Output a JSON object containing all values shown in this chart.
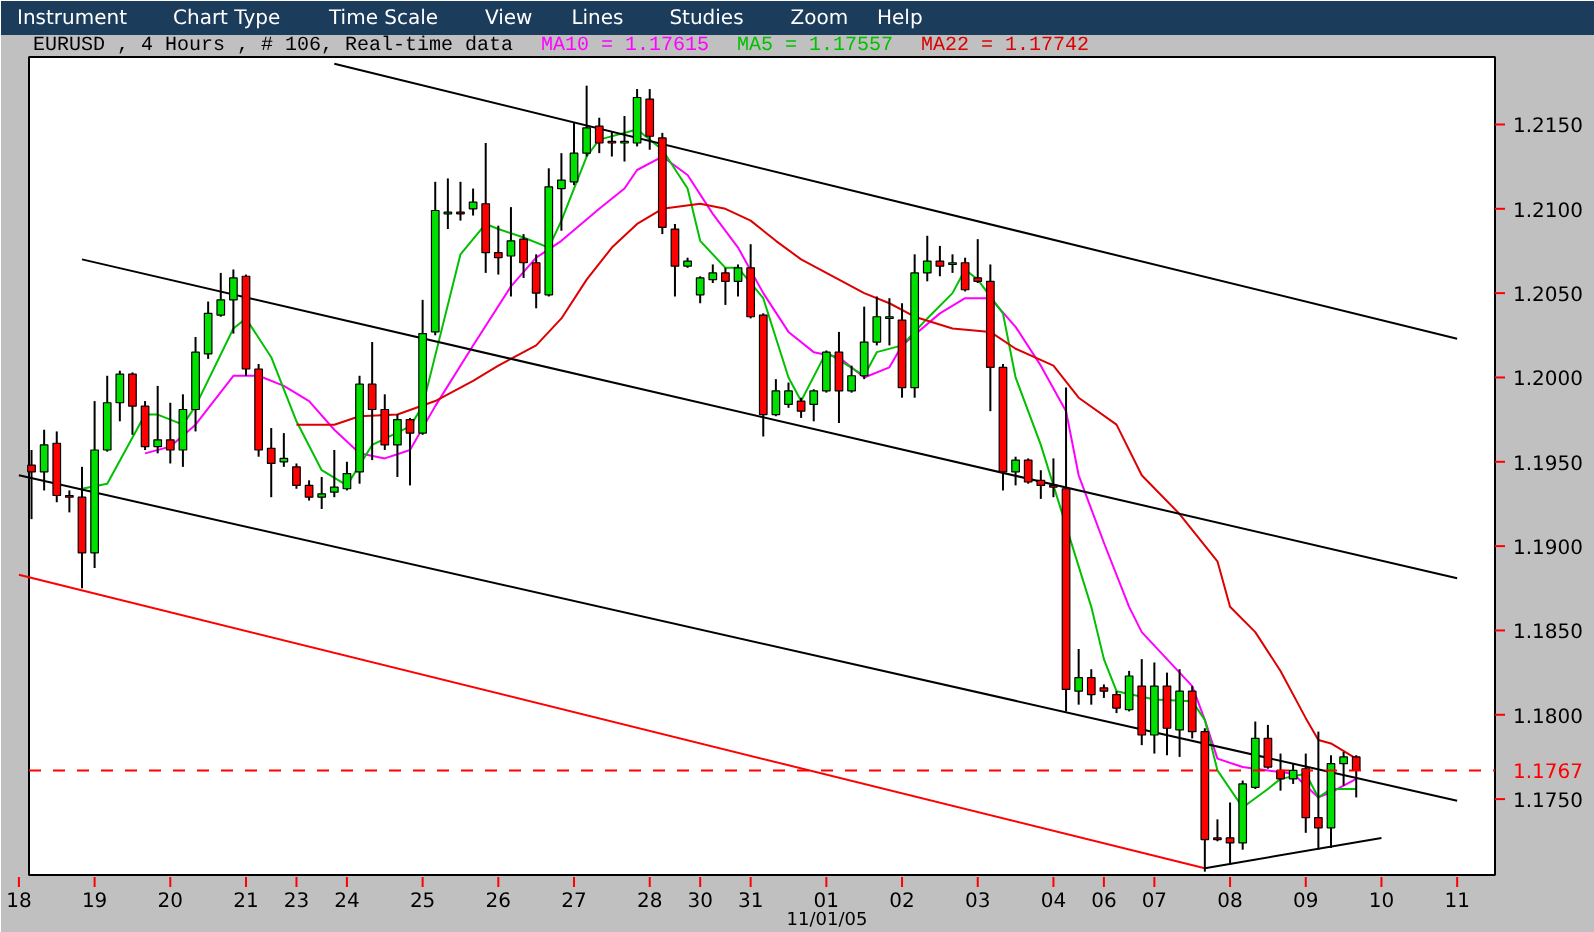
{
  "chart_data": {
    "type": "candlestick",
    "title": "EURUSD , 4 Hours , # 106, Real-time data",
    "annotations": [
      "Instrument",
      "Chart Type",
      "Time Scale",
      "View",
      "Lines",
      "Studies",
      "Zoom",
      "Help",
      "11/01/05"
    ],
    "categories": [
      "18",
      null,
      null,
      null,
      null,
      null,
      "19",
      null,
      null,
      null,
      null,
      null,
      "20",
      null,
      null,
      null,
      null,
      null,
      "21",
      null,
      null,
      null,
      "23",
      null,
      null,
      null,
      "24",
      null,
      null,
      null,
      null,
      null,
      "25",
      null,
      null,
      null,
      null,
      null,
      "26",
      null,
      null,
      null,
      null,
      null,
      "27",
      null,
      null,
      null,
      null,
      null,
      "28",
      null,
      null,
      null,
      "30",
      null,
      null,
      null,
      "31",
      null,
      null,
      null,
      null,
      null,
      "01",
      null,
      null,
      null,
      null,
      null,
      "02",
      null,
      null,
      null,
      null,
      null,
      "03",
      null,
      null,
      null,
      null,
      null,
      "04",
      null,
      null,
      null,
      "06",
      null,
      null,
      null,
      "07",
      null,
      null,
      null,
      null,
      null,
      "08",
      null,
      null,
      null,
      null,
      null,
      "09",
      null,
      null,
      null,
      null,
      null,
      "10",
      null,
      null,
      null,
      null,
      null,
      "11"
    ],
    "ylim": [
      1.1705,
      1.219
    ],
    "yticks": [
      {
        "value": 1.175,
        "label": "1.1750"
      },
      {
        "value": 1.18,
        "label": "1.1800"
      },
      {
        "value": 1.185,
        "label": "1.1850"
      },
      {
        "value": 1.19,
        "label": "1.1900"
      },
      {
        "value": 1.195,
        "label": "1.1950"
      },
      {
        "value": 1.2,
        "label": "1.2000"
      },
      {
        "value": 1.205,
        "label": "1.2050"
      },
      {
        "value": 1.21,
        "label": "1.2100"
      },
      {
        "value": 1.215,
        "label": "1.2150"
      }
    ],
    "ref_lines": [
      {
        "axis": "y",
        "value": 1.1767,
        "label": "1.1767",
        "color": "#ff0000",
        "line_style": "dashed"
      }
    ],
    "ohlc": [
      null,
      [
        1.1948,
        1.1957,
        1.1916,
        1.1944
      ],
      [
        1.1944,
        1.1969,
        1.1933,
        1.196
      ],
      [
        1.1961,
        1.1968,
        1.1926,
        1.193
      ],
      [
        1.193,
        1.1933,
        1.192,
        1.1929
      ],
      [
        1.1929,
        1.1947,
        1.1875,
        1.1896
      ],
      [
        1.1896,
        1.1986,
        1.1887,
        1.1957
      ],
      [
        1.1957,
        1.2001,
        1.1956,
        1.1985
      ],
      [
        1.1985,
        1.2004,
        1.1974,
        1.2002
      ],
      [
        1.2002,
        1.2003,
        1.1966,
        1.1983
      ],
      [
        1.1983,
        1.1986,
        1.1957,
        1.1959
      ],
      [
        1.1959,
        1.1995,
        1.1955,
        1.1963
      ],
      [
        1.1963,
        1.1985,
        1.1949,
        1.1957
      ],
      [
        1.1957,
        1.199,
        1.1947,
        1.1981
      ],
      [
        1.1981,
        1.2024,
        1.1968,
        1.2015
      ],
      [
        1.2014,
        1.2045,
        1.2011,
        1.2038
      ],
      [
        1.2037,
        1.2062,
        1.2036,
        1.2046
      ],
      [
        1.2046,
        1.2064,
        1.2026,
        1.2059
      ],
      [
        1.206,
        1.2061,
        1.2001,
        1.2005
      ],
      [
        1.2005,
        1.2008,
        1.1953,
        1.1957
      ],
      [
        1.1958,
        1.197,
        1.1929,
        1.1949
      ],
      [
        1.195,
        1.1967,
        1.1947,
        1.1952
      ],
      [
        1.1947,
        1.1949,
        1.1934,
        1.1936
      ],
      [
        1.1936,
        1.1939,
        1.1927,
        1.1929
      ],
      [
        1.1929,
        1.1941,
        1.1922,
        1.1931
      ],
      [
        1.1932,
        1.1957,
        1.1929,
        1.1935
      ],
      [
        1.1934,
        1.195,
        1.1933,
        1.1943
      ],
      [
        1.1944,
        1.2001,
        1.1937,
        1.1996
      ],
      [
        1.1996,
        1.2021,
        1.1951,
        1.1981
      ],
      [
        1.1981,
        1.199,
        1.1957,
        1.196
      ],
      [
        1.196,
        1.1978,
        1.1941,
        1.1975
      ],
      [
        1.1975,
        1.1976,
        1.1936,
        1.1967
      ],
      [
        1.1967,
        1.2046,
        1.1966,
        1.2026
      ],
      [
        1.2027,
        1.2116,
        1.2025,
        1.2099
      ],
      [
        1.2097,
        1.2118,
        1.2088,
        1.2098
      ],
      [
        1.2098,
        1.2116,
        1.2093,
        1.2097
      ],
      [
        1.21,
        1.2112,
        1.2096,
        1.2104
      ],
      [
        1.2103,
        1.2139,
        1.2062,
        1.2074
      ],
      [
        1.2074,
        1.209,
        1.2061,
        1.2071
      ],
      [
        1.2072,
        1.2101,
        1.2048,
        1.2081
      ],
      [
        1.2082,
        1.2085,
        1.2059,
        1.2068
      ],
      [
        1.2068,
        1.2073,
        1.2041,
        1.205
      ],
      [
        1.2049,
        1.2124,
        1.2048,
        1.2113
      ],
      [
        1.2112,
        1.2133,
        1.2087,
        1.2117
      ],
      [
        1.2116,
        1.2151,
        1.2114,
        1.2133
      ],
      [
        1.2133,
        1.2173,
        1.2131,
        1.2148
      ],
      [
        1.2149,
        1.2154,
        1.2133,
        1.2139
      ],
      [
        1.214,
        1.2146,
        1.2131,
        1.2139
      ],
      [
        1.2139,
        1.2155,
        1.2128,
        1.214
      ],
      [
        1.2139,
        1.2171,
        1.2137,
        1.2166
      ],
      [
        1.2165,
        1.2171,
        1.2135,
        1.2143
      ],
      [
        1.2142,
        1.2145,
        1.2085,
        1.2089
      ],
      [
        1.2088,
        1.2091,
        1.2048,
        1.2066
      ],
      [
        1.2066,
        1.2071,
        1.2065,
        1.2069
      ],
      [
        1.2049,
        1.206,
        1.2044,
        1.2059
      ],
      [
        1.2058,
        1.2067,
        1.2056,
        1.2062
      ],
      [
        1.2062,
        1.2065,
        1.2043,
        1.2057
      ],
      [
        1.2057,
        1.2067,
        1.2048,
        1.2065
      ],
      [
        1.2065,
        1.2079,
        1.2035,
        1.2036
      ],
      [
        1.2037,
        1.2038,
        1.1965,
        1.1978
      ],
      [
        1.1978,
        1.1999,
        1.1977,
        1.1992
      ],
      [
        1.1984,
        1.1997,
        1.1982,
        1.1992
      ],
      [
        1.1986,
        1.1988,
        1.1976,
        1.198
      ],
      [
        1.1984,
        1.1993,
        1.1974,
        1.1992
      ],
      [
        1.1992,
        1.2016,
        1.1991,
        1.2015
      ],
      [
        1.2015,
        1.2027,
        1.1973,
        1.1992
      ],
      [
        1.1992,
        1.2007,
        1.1991,
        1.2001
      ],
      [
        1.2001,
        1.2042,
        1.1999,
        1.2021
      ],
      [
        1.2021,
        1.2048,
        1.2019,
        1.2036
      ],
      [
        1.2035,
        1.2047,
        1.2019,
        1.2036
      ],
      [
        1.2034,
        1.2044,
        1.1988,
        1.1994
      ],
      [
        1.1994,
        1.2073,
        1.1988,
        1.2062
      ],
      [
        1.2062,
        1.2084,
        1.2057,
        1.2069
      ],
      [
        1.2069,
        1.2078,
        1.206,
        1.2066
      ],
      [
        1.2067,
        1.2073,
        1.2062,
        1.2068
      ],
      [
        1.2068,
        1.2071,
        1.2051,
        1.2052
      ],
      [
        1.2059,
        1.2082,
        1.2056,
        1.2057
      ],
      [
        1.2057,
        1.2067,
        1.198,
        1.2006
      ],
      [
        1.2006,
        1.2008,
        1.1933,
        1.1944
      ],
      [
        1.1944,
        1.1953,
        1.1936,
        1.1951
      ],
      [
        1.1951,
        1.1952,
        1.1937,
        1.1938
      ],
      [
        1.1939,
        1.1945,
        1.1928,
        1.1936
      ],
      [
        1.1936,
        1.1952,
        1.1929,
        1.1935
      ],
      [
        1.1934,
        1.1994,
        1.1802,
        1.1815
      ],
      [
        1.1814,
        1.1839,
        1.1806,
        1.1822
      ],
      [
        1.1822,
        1.1827,
        1.1806,
        1.1812
      ],
      [
        1.1816,
        1.1818,
        1.181,
        1.1814
      ],
      [
        1.1812,
        1.1814,
        1.1801,
        1.1804
      ],
      [
        1.1803,
        1.1826,
        1.1802,
        1.1823
      ],
      [
        1.1817,
        1.1833,
        1.1782,
        1.1788
      ],
      [
        1.1788,
        1.1831,
        1.1777,
        1.1817
      ],
      [
        1.1817,
        1.1825,
        1.1776,
        1.1792
      ],
      [
        1.1791,
        1.1827,
        1.1775,
        1.1814
      ],
      [
        1.1814,
        1.1817,
        1.1786,
        1.179
      ],
      [
        1.179,
        1.1792,
        1.1707,
        1.1726
      ],
      [
        1.1727,
        1.1738,
        1.1725,
        1.1726
      ],
      [
        1.1727,
        1.1748,
        1.1711,
        1.1724
      ],
      [
        1.1724,
        1.1761,
        1.172,
        1.1759
      ],
      [
        1.1757,
        1.1796,
        1.1756,
        1.1786
      ],
      [
        1.1786,
        1.1794,
        1.1768,
        1.1769
      ],
      [
        1.1767,
        1.1777,
        1.1755,
        1.1762
      ],
      [
        1.1762,
        1.1771,
        1.1759,
        1.1767
      ],
      [
        1.1768,
        1.1777,
        1.173,
        1.1739
      ],
      [
        1.1739,
        1.179,
        1.172,
        1.1733
      ],
      [
        1.1733,
        1.1776,
        1.1721,
        1.1771
      ],
      [
        1.1771,
        1.1778,
        1.1758,
        1.1775
      ],
      [
        1.1775,
        1.1776,
        1.1751,
        1.1767
      ],
      null,
      null,
      null,
      null,
      null,
      null,
      null,
      null
    ],
    "series": [
      {
        "name": "MA10 = 1.17615",
        "type": "line",
        "color": "#ff00ff",
        "values": [
          null,
          null,
          null,
          null,
          null,
          null,
          null,
          null,
          null,
          null,
          1.1955,
          null,
          1.1959,
          null,
          1.1972,
          null,
          null,
          1.2001,
          null,
          1.2001,
          null,
          1.1995,
          null,
          1.1986,
          null,
          1.1969,
          null,
          1.1955,
          null,
          1.1952,
          null,
          1.1957,
          null,
          1.1983,
          null,
          null,
          1.2019,
          null,
          null,
          1.2054,
          null,
          1.2071,
          null,
          1.2081,
          null,
          null,
          1.21,
          null,
          1.2112,
          1.2123,
          null,
          1.2131,
          null,
          1.212,
          null,
          1.2097,
          null,
          1.2077,
          null,
          1.205,
          null,
          1.2027,
          null,
          1.2015,
          null,
          1.2012,
          null,
          1.2,
          null,
          1.2006,
          1.2019,
          null,
          null,
          1.2038,
          null,
          1.2047,
          null,
          1.2047,
          null,
          1.203,
          null,
          1.2007,
          null,
          1.198,
          1.1942,
          null,
          1.1902,
          null,
          1.1864,
          1.1849,
          null,
          1.1833,
          null,
          1.1817,
          1.1797,
          1.1774,
          null,
          1.1769,
          null,
          1.1767,
          null,
          1.1765,
          null,
          1.1751,
          1.1754,
          null,
          1.1762,
          null,
          null,
          null,
          null,
          null,
          null,
          null,
          null
        ]
      },
      {
        "name": "MA5 = 1.17557",
        "type": "line",
        "color": "#00c000",
        "values": [
          null,
          null,
          null,
          null,
          null,
          1.1934,
          null,
          1.1937,
          null,
          null,
          1.1978,
          1.1978,
          null,
          1.1972,
          1.1983,
          null,
          null,
          1.2029,
          1.2035,
          null,
          1.2012,
          null,
          1.1974,
          null,
          1.1945,
          null,
          1.1936,
          null,
          1.196,
          null,
          null,
          1.1971,
          1.1983,
          null,
          null,
          1.2073,
          null,
          1.2091,
          1.2088,
          null,
          1.2083,
          null,
          1.2077,
          1.2093,
          null,
          1.2131,
          1.2141,
          null,
          null,
          1.2147,
          null,
          1.2135,
          null,
          1.2112,
          1.2081,
          null,
          1.2065,
          1.2065,
          null,
          1.2047,
          null,
          1.2,
          1.1986,
          null,
          1.2015,
          null,
          null,
          1.2001,
          1.2015,
          null,
          1.2019,
          null,
          1.2035,
          null,
          1.205,
          1.2064,
          1.2058,
          null,
          1.2038,
          1.2,
          null,
          1.196,
          null,
          null,
          null,
          1.1864,
          1.1833,
          1.1814,
          null,
          null,
          1.1809,
          null,
          null,
          1.1808,
          1.1797,
          1.1767,
          null,
          1.1745,
          null,
          1.1756,
          1.1762,
          null,
          1.1765,
          1.1751,
          1.1756,
          null,
          1.1756,
          null,
          null,
          null,
          null,
          null,
          null,
          null,
          null
        ]
      },
      {
        "name": "MA22 = 1.17742",
        "type": "line",
        "color": "#dd0000",
        "values": [
          null,
          null,
          null,
          null,
          null,
          null,
          null,
          null,
          null,
          null,
          null,
          null,
          null,
          null,
          null,
          null,
          null,
          null,
          null,
          null,
          null,
          null,
          1.1972,
          null,
          null,
          1.1972,
          null,
          1.1977,
          null,
          null,
          1.1978,
          null,
          null,
          1.1986,
          null,
          null,
          1.1998,
          null,
          1.2007,
          null,
          null,
          1.2019,
          null,
          1.2035,
          null,
          1.2058,
          null,
          1.2077,
          null,
          1.2091,
          null,
          1.21,
          null,
          null,
          1.2103,
          null,
          1.21,
          null,
          1.2093,
          null,
          1.2081,
          null,
          1.207,
          null,
          null,
          1.2058,
          null,
          1.205,
          null,
          1.2044,
          null,
          1.2036,
          null,
          null,
          1.2029,
          null,
          null,
          1.2027,
          null,
          1.2017,
          null,
          null,
          1.2007,
          null,
          1.1988,
          null,
          null,
          1.1972,
          null,
          1.1942,
          null,
          null,
          1.1919,
          null,
          null,
          1.1891,
          1.1864,
          null,
          1.1849,
          null,
          1.1826,
          null,
          1.1798,
          1.1785,
          1.1783,
          null,
          1.1774,
          null,
          null,
          null,
          null,
          null,
          null,
          null,
          null
        ]
      },
      {
        "type": "line",
        "color": "#000000",
        "values": [
          null,
          null,
          null,
          null,
          null,
          null,
          null,
          null,
          null,
          null,
          null,
          null,
          null,
          null,
          null,
          null,
          null,
          null,
          null,
          null,
          null,
          null,
          null,
          null,
          null,
          1.2186,
          null,
          null,
          null,
          null,
          null,
          null,
          null,
          null,
          null,
          null,
          null,
          null,
          null,
          null,
          null,
          null,
          null,
          null,
          null,
          null,
          null,
          null,
          null,
          null,
          null,
          null,
          null,
          null,
          null,
          null,
          null,
          null,
          null,
          null,
          null,
          null,
          null,
          null,
          null,
          null,
          null,
          null,
          null,
          null,
          null,
          null,
          null,
          null,
          null,
          null,
          null,
          null,
          null,
          null,
          null,
          null,
          null,
          null,
          null,
          null,
          null,
          null,
          null,
          null,
          null,
          null,
          null,
          null,
          null,
          null,
          null,
          null,
          null,
          null,
          null,
          null,
          null,
          null,
          null,
          null,
          null,
          null,
          null,
          null,
          null,
          null,
          null,
          null,
          1.2023
        ]
      },
      {
        "type": "line",
        "color": "#000000",
        "values": [
          null,
          null,
          null,
          null,
          null,
          1.207,
          null,
          null,
          null,
          null,
          null,
          null,
          null,
          null,
          null,
          null,
          null,
          null,
          null,
          null,
          null,
          null,
          null,
          null,
          null,
          null,
          null,
          null,
          null,
          null,
          null,
          null,
          null,
          null,
          null,
          null,
          null,
          null,
          null,
          null,
          null,
          null,
          null,
          null,
          null,
          null,
          null,
          null,
          null,
          null,
          null,
          null,
          null,
          null,
          null,
          null,
          null,
          null,
          null,
          null,
          null,
          null,
          null,
          null,
          null,
          null,
          null,
          null,
          null,
          null,
          null,
          null,
          null,
          null,
          null,
          null,
          null,
          null,
          null,
          null,
          null,
          null,
          null,
          null,
          null,
          null,
          null,
          null,
          null,
          null,
          null,
          null,
          null,
          null,
          null,
          null,
          null,
          null,
          null,
          null,
          null,
          null,
          null,
          null,
          null,
          null,
          null,
          null,
          null,
          null,
          null,
          null,
          null,
          null,
          1.1881
        ]
      },
      {
        "type": "line",
        "color": "#000000",
        "values": [
          1.1942,
          null,
          null,
          null,
          null,
          null,
          null,
          null,
          null,
          null,
          null,
          null,
          null,
          null,
          null,
          null,
          null,
          null,
          null,
          null,
          null,
          null,
          null,
          null,
          null,
          null,
          null,
          null,
          null,
          null,
          null,
          null,
          null,
          null,
          null,
          null,
          null,
          null,
          null,
          null,
          null,
          null,
          null,
          null,
          null,
          null,
          null,
          null,
          null,
          null,
          null,
          null,
          null,
          null,
          null,
          null,
          null,
          null,
          null,
          null,
          null,
          null,
          null,
          null,
          null,
          null,
          null,
          null,
          null,
          null,
          null,
          null,
          null,
          null,
          null,
          null,
          null,
          null,
          null,
          null,
          null,
          null,
          null,
          null,
          null,
          null,
          null,
          null,
          null,
          null,
          null,
          null,
          null,
          null,
          null,
          null,
          null,
          null,
          null,
          null,
          null,
          null,
          null,
          null,
          null,
          null,
          null,
          null,
          null,
          null,
          null,
          null,
          null,
          null,
          1.1749
        ]
      },
      {
        "type": "line",
        "color": "#ff0000",
        "values": [
          1.1883,
          null,
          null,
          null,
          null,
          null,
          null,
          null,
          null,
          null,
          null,
          null,
          null,
          null,
          null,
          null,
          null,
          null,
          null,
          null,
          null,
          null,
          null,
          null,
          null,
          null,
          null,
          null,
          null,
          null,
          null,
          null,
          null,
          null,
          null,
          null,
          null,
          null,
          null,
          null,
          null,
          null,
          null,
          null,
          null,
          null,
          null,
          null,
          null,
          null,
          null,
          null,
          null,
          null,
          null,
          null,
          null,
          null,
          null,
          null,
          null,
          null,
          null,
          null,
          null,
          null,
          null,
          null,
          null,
          null,
          null,
          null,
          null,
          null,
          null,
          null,
          null,
          null,
          null,
          null,
          null,
          null,
          null,
          null,
          null,
          null,
          null,
          null,
          null,
          null,
          null,
          null,
          null,
          null,
          1.1709,
          null,
          null,
          null,
          null,
          null,
          null,
          null,
          null,
          null,
          null,
          null,
          null,
          null,
          null,
          null,
          null,
          null,
          null,
          null,
          null
        ]
      },
      {
        "type": "line",
        "color": "#000000",
        "values": [
          null,
          null,
          null,
          null,
          null,
          null,
          null,
          null,
          null,
          null,
          null,
          null,
          null,
          null,
          null,
          null,
          null,
          null,
          null,
          null,
          null,
          null,
          null,
          null,
          null,
          null,
          null,
          null,
          null,
          null,
          null,
          null,
          null,
          null,
          null,
          null,
          null,
          null,
          null,
          null,
          null,
          null,
          null,
          null,
          null,
          null,
          null,
          null,
          null,
          null,
          null,
          null,
          null,
          null,
          null,
          null,
          null,
          null,
          null,
          null,
          null,
          null,
          null,
          null,
          null,
          null,
          null,
          null,
          null,
          null,
          null,
          null,
          null,
          null,
          null,
          null,
          null,
          null,
          null,
          null,
          null,
          null,
          null,
          null,
          null,
          null,
          null,
          null,
          null,
          null,
          null,
          null,
          null,
          null,
          1.1709,
          null,
          null,
          null,
          null,
          null,
          null,
          null,
          null,
          null,
          null,
          null,
          null,
          null,
          1.1727,
          null,
          null,
          null,
          null,
          null,
          null
        ]
      }
    ]
  }
}
